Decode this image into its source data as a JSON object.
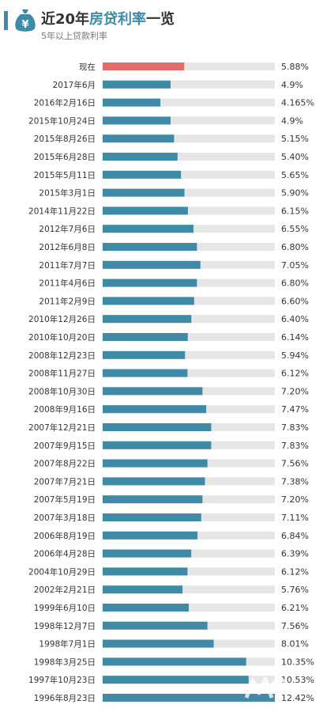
{
  "header": {
    "title_prefix": "近20年",
    "title_accent": "房贷利率",
    "title_suffix": "一览",
    "subtitle": "5年以上贷款利率"
  },
  "colors": {
    "accent": "#3f8aa6",
    "bar": "#3f8aa6",
    "bar_current": "#e06c6c",
    "track": "#e6e6e6",
    "label": "#333333"
  },
  "chart_data": {
    "type": "bar",
    "orientation": "horizontal",
    "title": "近20年房贷利率一览",
    "subtitle": "5年以上贷款利率",
    "xlim": [
      0,
      12.42
    ],
    "grid": false,
    "legend": "none",
    "categories": [
      "现在",
      "2017年6月",
      "2016年2月16日",
      "2015年10月24日",
      "2015年8月26日",
      "2015年6月28日",
      "2015年5月11日",
      "2015年3月1日",
      "2014年11月22日",
      "2012年7月6日",
      "2012年6月8日",
      "2011年7月7日",
      "2011年4月6日",
      "2011年2月9日",
      "2010年12月26日",
      "2010年10月20日",
      "2008年12月23日",
      "2008年11月27日",
      "2008年10月30日",
      "2008年9月16日",
      "2007年12月21日",
      "2007年9月15日",
      "2007年8月22日",
      "2007年7月21日",
      "2007年5月19日",
      "2007年3月18日",
      "2006年8月19日",
      "2006年4月28日",
      "2004年10月29日",
      "2002年2月21日",
      "1999年6月10日",
      "1998年12月7日",
      "1998年7月1日",
      "1998年3月25日",
      "1997年10月23日",
      "1996年8月23日"
    ],
    "values": [
      5.88,
      4.9,
      4.165,
      4.9,
      5.15,
      5.4,
      5.65,
      5.9,
      6.15,
      6.55,
      6.8,
      7.05,
      6.8,
      6.6,
      6.4,
      6.14,
      5.94,
      6.12,
      7.2,
      7.47,
      7.83,
      7.83,
      7.56,
      7.38,
      7.2,
      7.11,
      6.84,
      6.39,
      6.12,
      5.76,
      6.21,
      7.56,
      8.01,
      10.35,
      10.53,
      12.42
    ],
    "value_labels": [
      "5.88%",
      "4.9%",
      "4.165%",
      "4.9%",
      "5.15%",
      "5.40%",
      "5.65%",
      "5.90%",
      "6.15%",
      "6.55%",
      "6.80%",
      "7.05%",
      "6.80%",
      "6.60%",
      "6.40%",
      "6.14%",
      "5.94%",
      "6.12%",
      "7.20%",
      "7.47%",
      "7.83%",
      "7.83%",
      "7.56%",
      "7.38%",
      "7.20%",
      "7.11%",
      "6.84%",
      "6.39%",
      "6.12%",
      "5.76%",
      "6.21%",
      "7.56%",
      "8.01%",
      "10.35%",
      "10.53%",
      "12.42%"
    ],
    "highlight_index": 0
  }
}
